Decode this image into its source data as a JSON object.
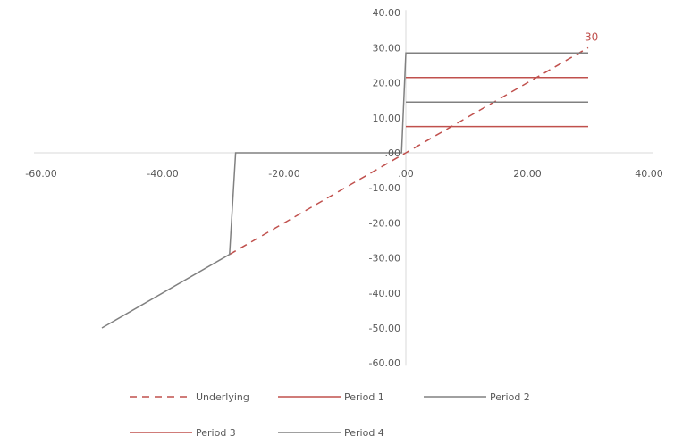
{
  "chart_data": {
    "type": "line",
    "title": "",
    "xlabel": "",
    "ylabel": "",
    "xlim": [
      -60,
      40
    ],
    "ylim": [
      -60,
      40
    ],
    "x_ticks": [
      "-60.00",
      "-40.00",
      "-20.00",
      ".00",
      "40.00",
      "20.00"
    ],
    "x_tick_values": [
      -60,
      -40,
      -20,
      0,
      40,
      20
    ],
    "y_ticks": [
      "40.00",
      "30.00",
      "20.00",
      "10.00",
      ".00",
      "-10.00",
      "-20.00",
      "-30.00",
      "-40.00",
      "-50.00",
      "-60.00"
    ],
    "y_tick_values": [
      40,
      30,
      20,
      10,
      0,
      -10,
      -20,
      -30,
      -40,
      -50,
      -60
    ],
    "grid": false,
    "legend_position": "bottom",
    "series": [
      {
        "name": "Underlying",
        "color": "#c0504d",
        "dash": true,
        "points": [
          [
            -29,
            -29
          ],
          [
            0,
            0
          ],
          [
            30,
            30
          ]
        ]
      },
      {
        "name": "Period 1",
        "color": "#c0504d",
        "dash": false,
        "points": [
          [
            0,
            7.5
          ],
          [
            30,
            7.5
          ]
        ]
      },
      {
        "name": "Period 2",
        "color": "#808080",
        "dash": false,
        "points": [
          [
            0,
            14.5
          ],
          [
            30,
            14.5
          ]
        ]
      },
      {
        "name": "Period 3",
        "color": "#c0504d",
        "dash": false,
        "points": [
          [
            0,
            21.5
          ],
          [
            30,
            21.5
          ]
        ]
      },
      {
        "name": "Period 4",
        "color": "#808080",
        "dash": false,
        "points": [
          [
            -50,
            -50
          ],
          [
            -29,
            -29
          ],
          [
            -28,
            0
          ],
          [
            -0.7,
            0
          ],
          [
            0,
            28.5
          ],
          [
            30,
            28.5
          ]
        ]
      }
    ],
    "annotations": [
      {
        "text": "30",
        "x": 30,
        "y": 30
      }
    ]
  }
}
